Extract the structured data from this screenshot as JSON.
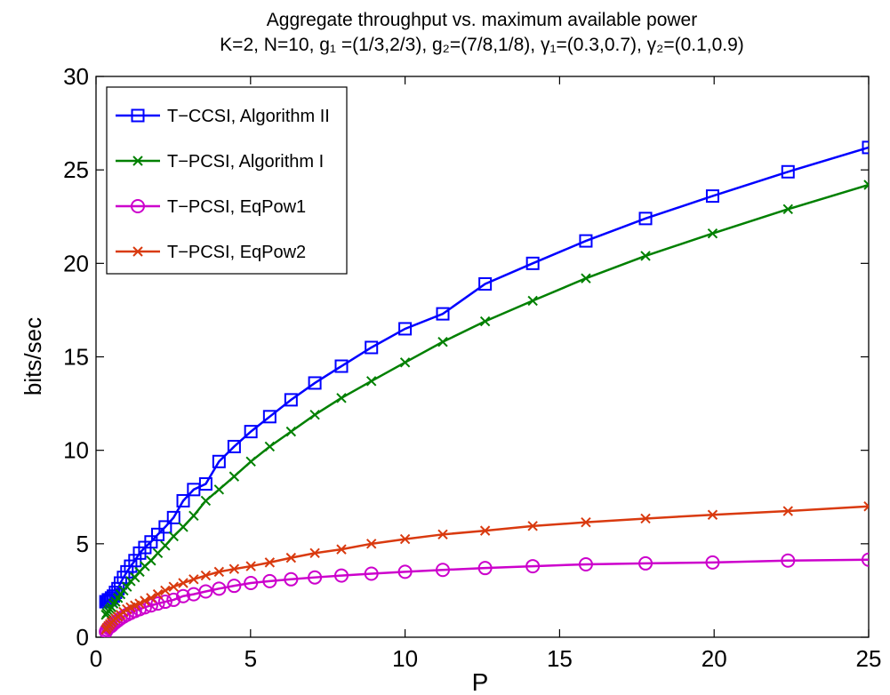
{
  "chart_data": {
    "type": "line",
    "title": "Aggregate throughput vs. maximum available power",
    "subtitle": "K=2, N=10, g₁ =(1/3,2/3), g₂=(7/8,1/8), γ₁=(0.3,0.7), γ₂=(0.1,0.9)",
    "xlabel": "P",
    "ylabel": "bits/sec",
    "xlim": [
      0,
      25
    ],
    "ylim": [
      0,
      30
    ],
    "xticks": [
      0,
      5,
      10,
      15,
      20,
      25
    ],
    "yticks": [
      0,
      5,
      10,
      15,
      20,
      25,
      30
    ],
    "grid": false,
    "legend": "upper left",
    "x": [
      0.32,
      0.35,
      0.4,
      0.45,
      0.5,
      0.56,
      0.63,
      0.71,
      0.79,
      0.89,
      1,
      1.12,
      1.26,
      1.41,
      1.58,
      1.78,
      2,
      2.24,
      2.51,
      2.82,
      3.16,
      3.55,
      3.98,
      4.47,
      5.01,
      5.62,
      6.31,
      7.08,
      7.94,
      8.91,
      10,
      11.22,
      12.59,
      14.13,
      15.85,
      17.78,
      19.95,
      22.39,
      25
    ],
    "series": [
      {
        "name": "T−CCSI, Algorithm II",
        "color": "#0000ff",
        "marker": "square",
        "values": [
          1.9,
          1.9,
          2.0,
          2.0,
          2.1,
          2.2,
          2.4,
          2.6,
          2.9,
          3.2,
          3.5,
          3.8,
          4.1,
          4.5,
          4.8,
          5.1,
          5.5,
          5.9,
          6.4,
          7.3,
          7.9,
          8.2,
          9.4,
          10.2,
          11.0,
          11.8,
          12.7,
          13.6,
          14.5,
          15.5,
          16.5,
          17.3,
          18.9,
          20.0,
          21.2,
          22.4,
          23.6,
          24.9,
          26.2
        ]
      },
      {
        "name": "T−PCSI, Algorithm I",
        "color": "#008000",
        "marker": "x",
        "values": [
          1.2,
          1.3,
          1.4,
          1.5,
          1.6,
          1.8,
          1.9,
          2.1,
          2.3,
          2.5,
          2.7,
          3.0,
          3.2,
          3.5,
          3.8,
          4.1,
          4.5,
          4.9,
          5.4,
          5.9,
          6.5,
          7.3,
          7.9,
          8.6,
          9.4,
          10.2,
          11.0,
          11.9,
          12.8,
          13.7,
          14.7,
          15.8,
          16.9,
          18.0,
          19.2,
          20.4,
          21.6,
          22.9,
          24.2
        ]
      },
      {
        "name": "T−PCSI, EqPow1",
        "color": "#cc00cc",
        "marker": "circle",
        "values": [
          0.3,
          0.4,
          0.5,
          0.55,
          0.6,
          0.7,
          0.8,
          0.9,
          1.0,
          1.1,
          1.2,
          1.3,
          1.4,
          1.5,
          1.6,
          1.7,
          1.8,
          1.9,
          2.0,
          2.2,
          2.3,
          2.45,
          2.6,
          2.75,
          2.9,
          3.0,
          3.1,
          3.2,
          3.3,
          3.4,
          3.5,
          3.6,
          3.7,
          3.8,
          3.9,
          3.95,
          4.0,
          4.1,
          4.15
        ]
      },
      {
        "name": "T−PCSI, EqPow2",
        "color": "#d93a0f",
        "marker": "x",
        "values": [
          0.4,
          0.5,
          0.6,
          0.7,
          0.8,
          0.9,
          1.0,
          1.1,
          1.2,
          1.35,
          1.5,
          1.6,
          1.7,
          1.8,
          1.95,
          2.1,
          2.3,
          2.5,
          2.7,
          2.9,
          3.1,
          3.3,
          3.5,
          3.65,
          3.8,
          4.0,
          4.25,
          4.5,
          4.7,
          5.0,
          5.25,
          5.5,
          5.7,
          5.95,
          6.15,
          6.35,
          6.55,
          6.75,
          7.0
        ]
      }
    ]
  }
}
